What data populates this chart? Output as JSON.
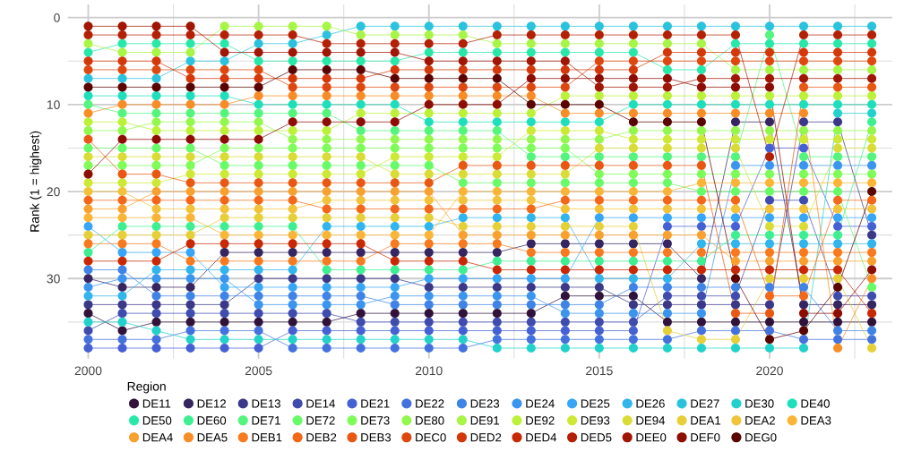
{
  "chart_data": {
    "type": "line",
    "ylabel": "Rank (1 = highest)",
    "legend_title": "Region",
    "x": [
      2000,
      2001,
      2002,
      2003,
      2004,
      2005,
      2006,
      2007,
      2008,
      2009,
      2010,
      2011,
      2012,
      2013,
      2014,
      2015,
      2016,
      2017,
      2018,
      2019,
      2020,
      2021,
      2022,
      2023
    ],
    "xlim": [
      1999.4,
      2023.6
    ],
    "xticks": [
      2000,
      {
        "value": 2002.5,
        "label": null
      },
      2005,
      {
        "value": 2007.5,
        "label": null
      },
      2010,
      {
        "value": 2012.5,
        "label": null
      },
      2015,
      {
        "value": 2017.5,
        "label": null
      },
      2020,
      {
        "value": 2022.5,
        "label": null
      }
    ],
    "ylim": [
      39.2,
      -1.5
    ],
    "yticks": [
      0,
      {
        "value": 5,
        "label": null
      },
      10,
      {
        "value": 15,
        "label": null
      },
      20,
      {
        "value": 25,
        "label": null
      },
      30,
      {
        "value": 35,
        "label": null
      }
    ],
    "grid": true,
    "legend": "bottom",
    "marker": "circle",
    "line_style": "solid",
    "series": [
      {
        "name": "DE11",
        "color": "#30123b",
        "values": [
          34,
          36,
          35,
          35,
          35,
          35,
          35,
          35,
          34,
          34,
          34,
          34,
          34,
          34,
          32,
          32,
          32,
          35,
          35,
          35,
          35,
          35,
          35,
          35
        ]
      },
      {
        "name": "DE12",
        "color": "#352561",
        "values": [
          30,
          31,
          31,
          31,
          27,
          27,
          27,
          27,
          27,
          27,
          27,
          27,
          27,
          26,
          26,
          26,
          26,
          26,
          30,
          12,
          12,
          33,
          33,
          33
        ]
      },
      {
        "name": "DE13",
        "color": "#3b3987",
        "values": [
          33,
          33,
          33,
          33,
          33,
          30,
          30,
          30,
          30,
          30,
          31,
          31,
          31,
          31,
          31,
          31,
          33,
          33,
          33,
          33,
          33,
          12,
          12,
          25
        ]
      },
      {
        "name": "DE14",
        "color": "#404cad",
        "values": [
          36,
          34,
          34,
          34,
          34,
          34,
          34,
          34,
          35,
          35,
          35,
          35,
          35,
          35,
          35,
          35,
          35,
          32,
          32,
          32,
          21,
          21,
          32,
          32
        ]
      },
      {
        "name": "DE21",
        "color": "#4560d3",
        "values": [
          38,
          38,
          38,
          38,
          38,
          38,
          36,
          36,
          36,
          36,
          36,
          36,
          36,
          36,
          36,
          36,
          36,
          24,
          24,
          24,
          15,
          15,
          24,
          24
        ]
      },
      {
        "name": "DE22",
        "color": "#4372de",
        "values": [
          37,
          37,
          37,
          36,
          36,
          36,
          38,
          38,
          38,
          38,
          38,
          38,
          37,
          37,
          37,
          37,
          37,
          37,
          36,
          36,
          36,
          37,
          37,
          37
        ]
      },
      {
        "name": "DE23",
        "color": "#3f83e7",
        "values": [
          29,
          29,
          32,
          32,
          32,
          32,
          32,
          32,
          32,
          33,
          33,
          33,
          33,
          33,
          33,
          33,
          31,
          31,
          31,
          31,
          31,
          31,
          36,
          36
        ]
      },
      {
        "name": "DE24",
        "color": "#3b95ef",
        "values": [
          31,
          30,
          30,
          30,
          30,
          33,
          33,
          33,
          33,
          32,
          32,
          32,
          32,
          32,
          34,
          34,
          34,
          34,
          34,
          17,
          17,
          17,
          17,
          17
        ]
      },
      {
        "name": "DE25",
        "color": "#37a6f7",
        "values": [
          24,
          27,
          27,
          27,
          31,
          31,
          31,
          31,
          31,
          31,
          30,
          30,
          30,
          30,
          30,
          23,
          23,
          23,
          23,
          23,
          23,
          23,
          23,
          23
        ]
      },
      {
        "name": "DE26",
        "color": "#31b5ec",
        "values": [
          32,
          32,
          29,
          29,
          29,
          29,
          29,
          24,
          24,
          24,
          24,
          23,
          23,
          23,
          23,
          30,
          30,
          30,
          26,
          26,
          26,
          26,
          26,
          26
        ]
      },
      {
        "name": "DE27",
        "color": "#2ac2dc",
        "values": [
          7,
          7,
          7,
          5,
          5,
          3,
          3,
          2,
          1,
          1,
          1,
          1,
          1,
          1,
          1,
          1,
          1,
          1,
          1,
          1,
          1,
          1,
          1,
          1
        ]
      },
      {
        "name": "DE30",
        "color": "#23d1cc",
        "values": [
          35,
          35,
          36,
          37,
          37,
          37,
          37,
          37,
          37,
          37,
          37,
          37,
          38,
          38,
          38,
          38,
          38,
          38,
          38,
          38,
          38,
          38,
          11,
          11
        ]
      },
      {
        "name": "DE40",
        "color": "#1ddfbb",
        "values": [
          9,
          9,
          9,
          9,
          9,
          10,
          10,
          10,
          10,
          10,
          12,
          12,
          12,
          12,
          12,
          12,
          10,
          10,
          10,
          10,
          10,
          10,
          10,
          10
        ]
      },
      {
        "name": "DE50",
        "color": "#28e8a8",
        "values": [
          4,
          3,
          3,
          3,
          3,
          5,
          5,
          5,
          5,
          5,
          4,
          4,
          4,
          4,
          4,
          4,
          4,
          6,
          6,
          3,
          3,
          3,
          3,
          3
        ]
      },
      {
        "name": "DE60",
        "color": "#3eef92",
        "values": [
          27,
          24,
          24,
          24,
          24,
          24,
          24,
          29,
          29,
          29,
          29,
          29,
          28,
          28,
          28,
          28,
          28,
          28,
          28,
          25,
          25,
          25,
          25,
          12
        ]
      },
      {
        "name": "DE71",
        "color": "#53f57d",
        "values": [
          10,
          11,
          11,
          11,
          11,
          11,
          11,
          11,
          13,
          13,
          13,
          13,
          13,
          16,
          16,
          16,
          16,
          16,
          16,
          16,
          2,
          16,
          16,
          16
        ]
      },
      {
        "name": "DE72",
        "color": "#68fb68",
        "values": [
          15,
          15,
          15,
          15,
          17,
          17,
          17,
          17,
          17,
          17,
          17,
          19,
          19,
          19,
          19,
          19,
          19,
          19,
          20,
          20,
          20,
          20,
          20,
          31
        ]
      },
      {
        "name": "DE73",
        "color": "#7efc58",
        "values": [
          17,
          17,
          17,
          17,
          15,
          15,
          15,
          15,
          15,
          15,
          15,
          15,
          15,
          15,
          15,
          18,
          18,
          18,
          18,
          18,
          18,
          18,
          18,
          18
        ]
      },
      {
        "name": "DE80",
        "color": "#93f84e",
        "values": [
          13,
          13,
          12,
          12,
          12,
          12,
          14,
          14,
          14,
          14,
          14,
          14,
          14,
          14,
          14,
          14,
          13,
          13,
          13,
          13,
          13,
          13,
          13,
          13
        ]
      },
      {
        "name": "DE91",
        "color": "#a7f544",
        "values": [
          3,
          4,
          4,
          4,
          1,
          1,
          1,
          1,
          2,
          2,
          2,
          2,
          3,
          3,
          3,
          3,
          3,
          3,
          3,
          6,
          6,
          6,
          6,
          6
        ]
      },
      {
        "name": "DE92",
        "color": "#bcf139",
        "values": [
          12,
          12,
          13,
          13,
          13,
          13,
          13,
          13,
          11,
          11,
          11,
          11,
          11,
          11,
          9,
          9,
          9,
          9,
          9,
          9,
          9,
          9,
          9,
          9
        ]
      },
      {
        "name": "DE93",
        "color": "#cde935",
        "values": [
          19,
          19,
          19,
          18,
          18,
          18,
          18,
          18,
          18,
          16,
          16,
          16,
          16,
          13,
          13,
          13,
          14,
          14,
          14,
          14,
          14,
          14,
          14,
          14
        ]
      },
      {
        "name": "DE94",
        "color": "#dadc36",
        "values": [
          16,
          16,
          16,
          16,
          16,
          16,
          16,
          16,
          16,
          18,
          18,
          18,
          18,
          18,
          18,
          15,
          15,
          15,
          15,
          15,
          24,
          24,
          15,
          15
        ]
      },
      {
        "name": "DEA1",
        "color": "#e6cf37",
        "values": [
          25,
          25,
          25,
          25,
          23,
          23,
          23,
          23,
          23,
          23,
          23,
          24,
          24,
          24,
          24,
          24,
          24,
          36,
          37,
          37,
          30,
          30,
          30,
          38
        ]
      },
      {
        "name": "DEA2",
        "color": "#f2c238",
        "values": [
          20,
          20,
          22,
          22,
          22,
          22,
          22,
          21,
          21,
          21,
          21,
          21,
          21,
          21,
          22,
          22,
          22,
          22,
          22,
          22,
          22,
          22,
          22,
          22
        ]
      },
      {
        "name": "DEA3",
        "color": "#fab436",
        "values": [
          23,
          23,
          23,
          23,
          25,
          25,
          25,
          25,
          25,
          25,
          25,
          20,
          20,
          20,
          20,
          20,
          20,
          20,
          19,
          19,
          19,
          19,
          19,
          19
        ]
      },
      {
        "name": "DEA4",
        "color": "#f9a12f",
        "values": [
          22,
          22,
          20,
          20,
          20,
          20,
          20,
          20,
          20,
          20,
          20,
          25,
          25,
          25,
          25,
          25,
          25,
          25,
          25,
          28,
          28,
          28,
          28,
          28
        ]
      },
      {
        "name": "DEA5",
        "color": "#f88d27",
        "values": [
          11,
          10,
          10,
          10,
          10,
          9,
          9,
          9,
          9,
          9,
          9,
          9,
          9,
          9,
          11,
          11,
          11,
          11,
          11,
          11,
          11,
          11,
          38,
          30
        ]
      },
      {
        "name": "DEB1",
        "color": "#f77a1f",
        "values": [
          26,
          26,
          26,
          28,
          28,
          28,
          28,
          28,
          28,
          26,
          26,
          26,
          26,
          27,
          27,
          27,
          27,
          27,
          27,
          27,
          27,
          27,
          27,
          27
        ]
      },
      {
        "name": "DEB2",
        "color": "#f46718",
        "values": [
          21,
          21,
          21,
          21,
          21,
          21,
          21,
          22,
          22,
          22,
          22,
          22,
          22,
          22,
          21,
          21,
          21,
          21,
          21,
          21,
          32,
          32,
          21,
          21
        ]
      },
      {
        "name": "DEB3",
        "color": "#e95813",
        "values": [
          14,
          18,
          18,
          19,
          19,
          19,
          19,
          19,
          19,
          19,
          19,
          17,
          17,
          17,
          17,
          17,
          17,
          17,
          17,
          34,
          34,
          8,
          8,
          8
        ]
      },
      {
        "name": "DEC0",
        "color": "#de480e",
        "values": [
          6,
          6,
          6,
          6,
          6,
          6,
          8,
          8,
          8,
          8,
          8,
          8,
          8,
          8,
          8,
          5,
          5,
          5,
          5,
          5,
          5,
          5,
          5,
          5
        ]
      },
      {
        "name": "DED2",
        "color": "#d43809",
        "values": [
          5,
          5,
          5,
          7,
          7,
          7,
          7,
          7,
          7,
          6,
          6,
          6,
          6,
          6,
          6,
          6,
          6,
          4,
          4,
          4,
          4,
          4,
          4,
          4
        ]
      },
      {
        "name": "DED4",
        "color": "#c82904",
        "values": [
          28,
          28,
          28,
          26,
          26,
          26,
          26,
          26,
          26,
          28,
          28,
          28,
          29,
          29,
          29,
          29,
          29,
          29,
          29,
          29,
          29,
          29,
          29,
          34
        ]
      },
      {
        "name": "DED5",
        "color": "#b42004",
        "values": [
          2,
          2,
          2,
          2,
          2,
          2,
          2,
          3,
          3,
          3,
          3,
          3,
          2,
          2,
          2,
          2,
          2,
          2,
          2,
          2,
          16,
          2,
          2,
          2
        ]
      },
      {
        "name": "DEE0",
        "color": "#a11603",
        "values": [
          1,
          1,
          1,
          1,
          4,
          4,
          4,
          4,
          4,
          4,
          5,
          5,
          5,
          5,
          5,
          8,
          8,
          8,
          7,
          7,
          7,
          7,
          7,
          7
        ]
      },
      {
        "name": "DEF0",
        "color": "#8d0d03",
        "values": [
          18,
          14,
          14,
          14,
          14,
          14,
          12,
          12,
          12,
          12,
          10,
          10,
          10,
          7,
          7,
          7,
          7,
          7,
          8,
          8,
          8,
          34,
          34,
          29
        ]
      },
      {
        "name": "DEG0",
        "color": "#5a0402",
        "values": [
          8,
          8,
          8,
          8,
          8,
          8,
          6,
          6,
          6,
          7,
          7,
          7,
          7,
          10,
          10,
          10,
          12,
          12,
          12,
          30,
          37,
          36,
          31,
          20
        ]
      }
    ]
  }
}
